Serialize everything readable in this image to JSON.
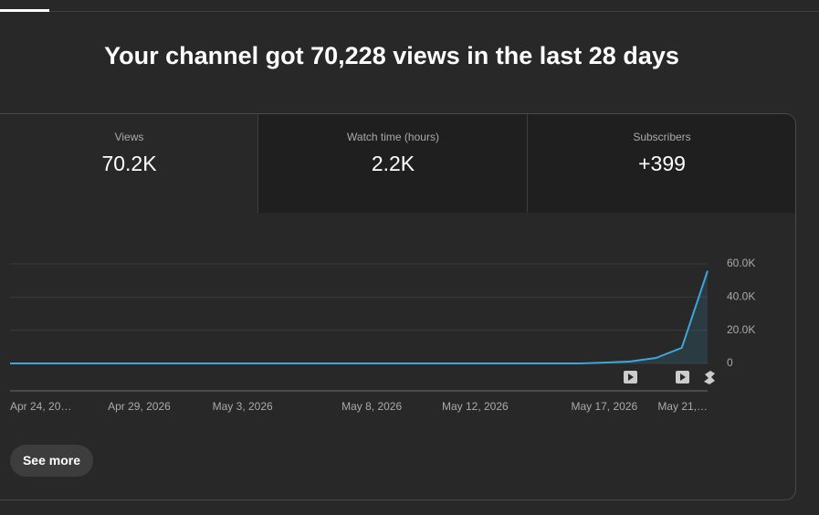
{
  "header": {
    "title": "Your channel got 70,228 views in the last 28 days"
  },
  "tabs": [
    {
      "label": "Views",
      "value": "70.2K"
    },
    {
      "label": "Watch time (hours)",
      "value": "2.2K"
    },
    {
      "label": "Subscribers",
      "value": "+399"
    }
  ],
  "chart_data": {
    "type": "line",
    "categories": [
      "Apr 24, 20…",
      null,
      null,
      null,
      null,
      "Apr 29, 2026",
      null,
      null,
      null,
      "May 3, 2026",
      null,
      null,
      null,
      null,
      "May 8, 2026",
      null,
      null,
      null,
      "May 12, 2026",
      null,
      null,
      null,
      null,
      "May 17, 2026",
      null,
      null,
      null,
      "May 21,…"
    ],
    "values": [
      0,
      0,
      0,
      0,
      0,
      0,
      0,
      0,
      0,
      0,
      0,
      0,
      0,
      0,
      0,
      0,
      0,
      0,
      0,
      0,
      0,
      0,
      0,
      500,
      1200,
      3300,
      9400,
      55800
    ],
    "color": "#3ea6d8",
    "ylim": [
      0,
      60000
    ],
    "yticks": [
      0,
      {
        "value": 20000,
        "label": "20.0K"
      },
      {
        "value": 40000,
        "label": "40.0K"
      },
      {
        "value": 60000,
        "label": "60.0K"
      }
    ],
    "grid": true
  },
  "see_more": "See more"
}
